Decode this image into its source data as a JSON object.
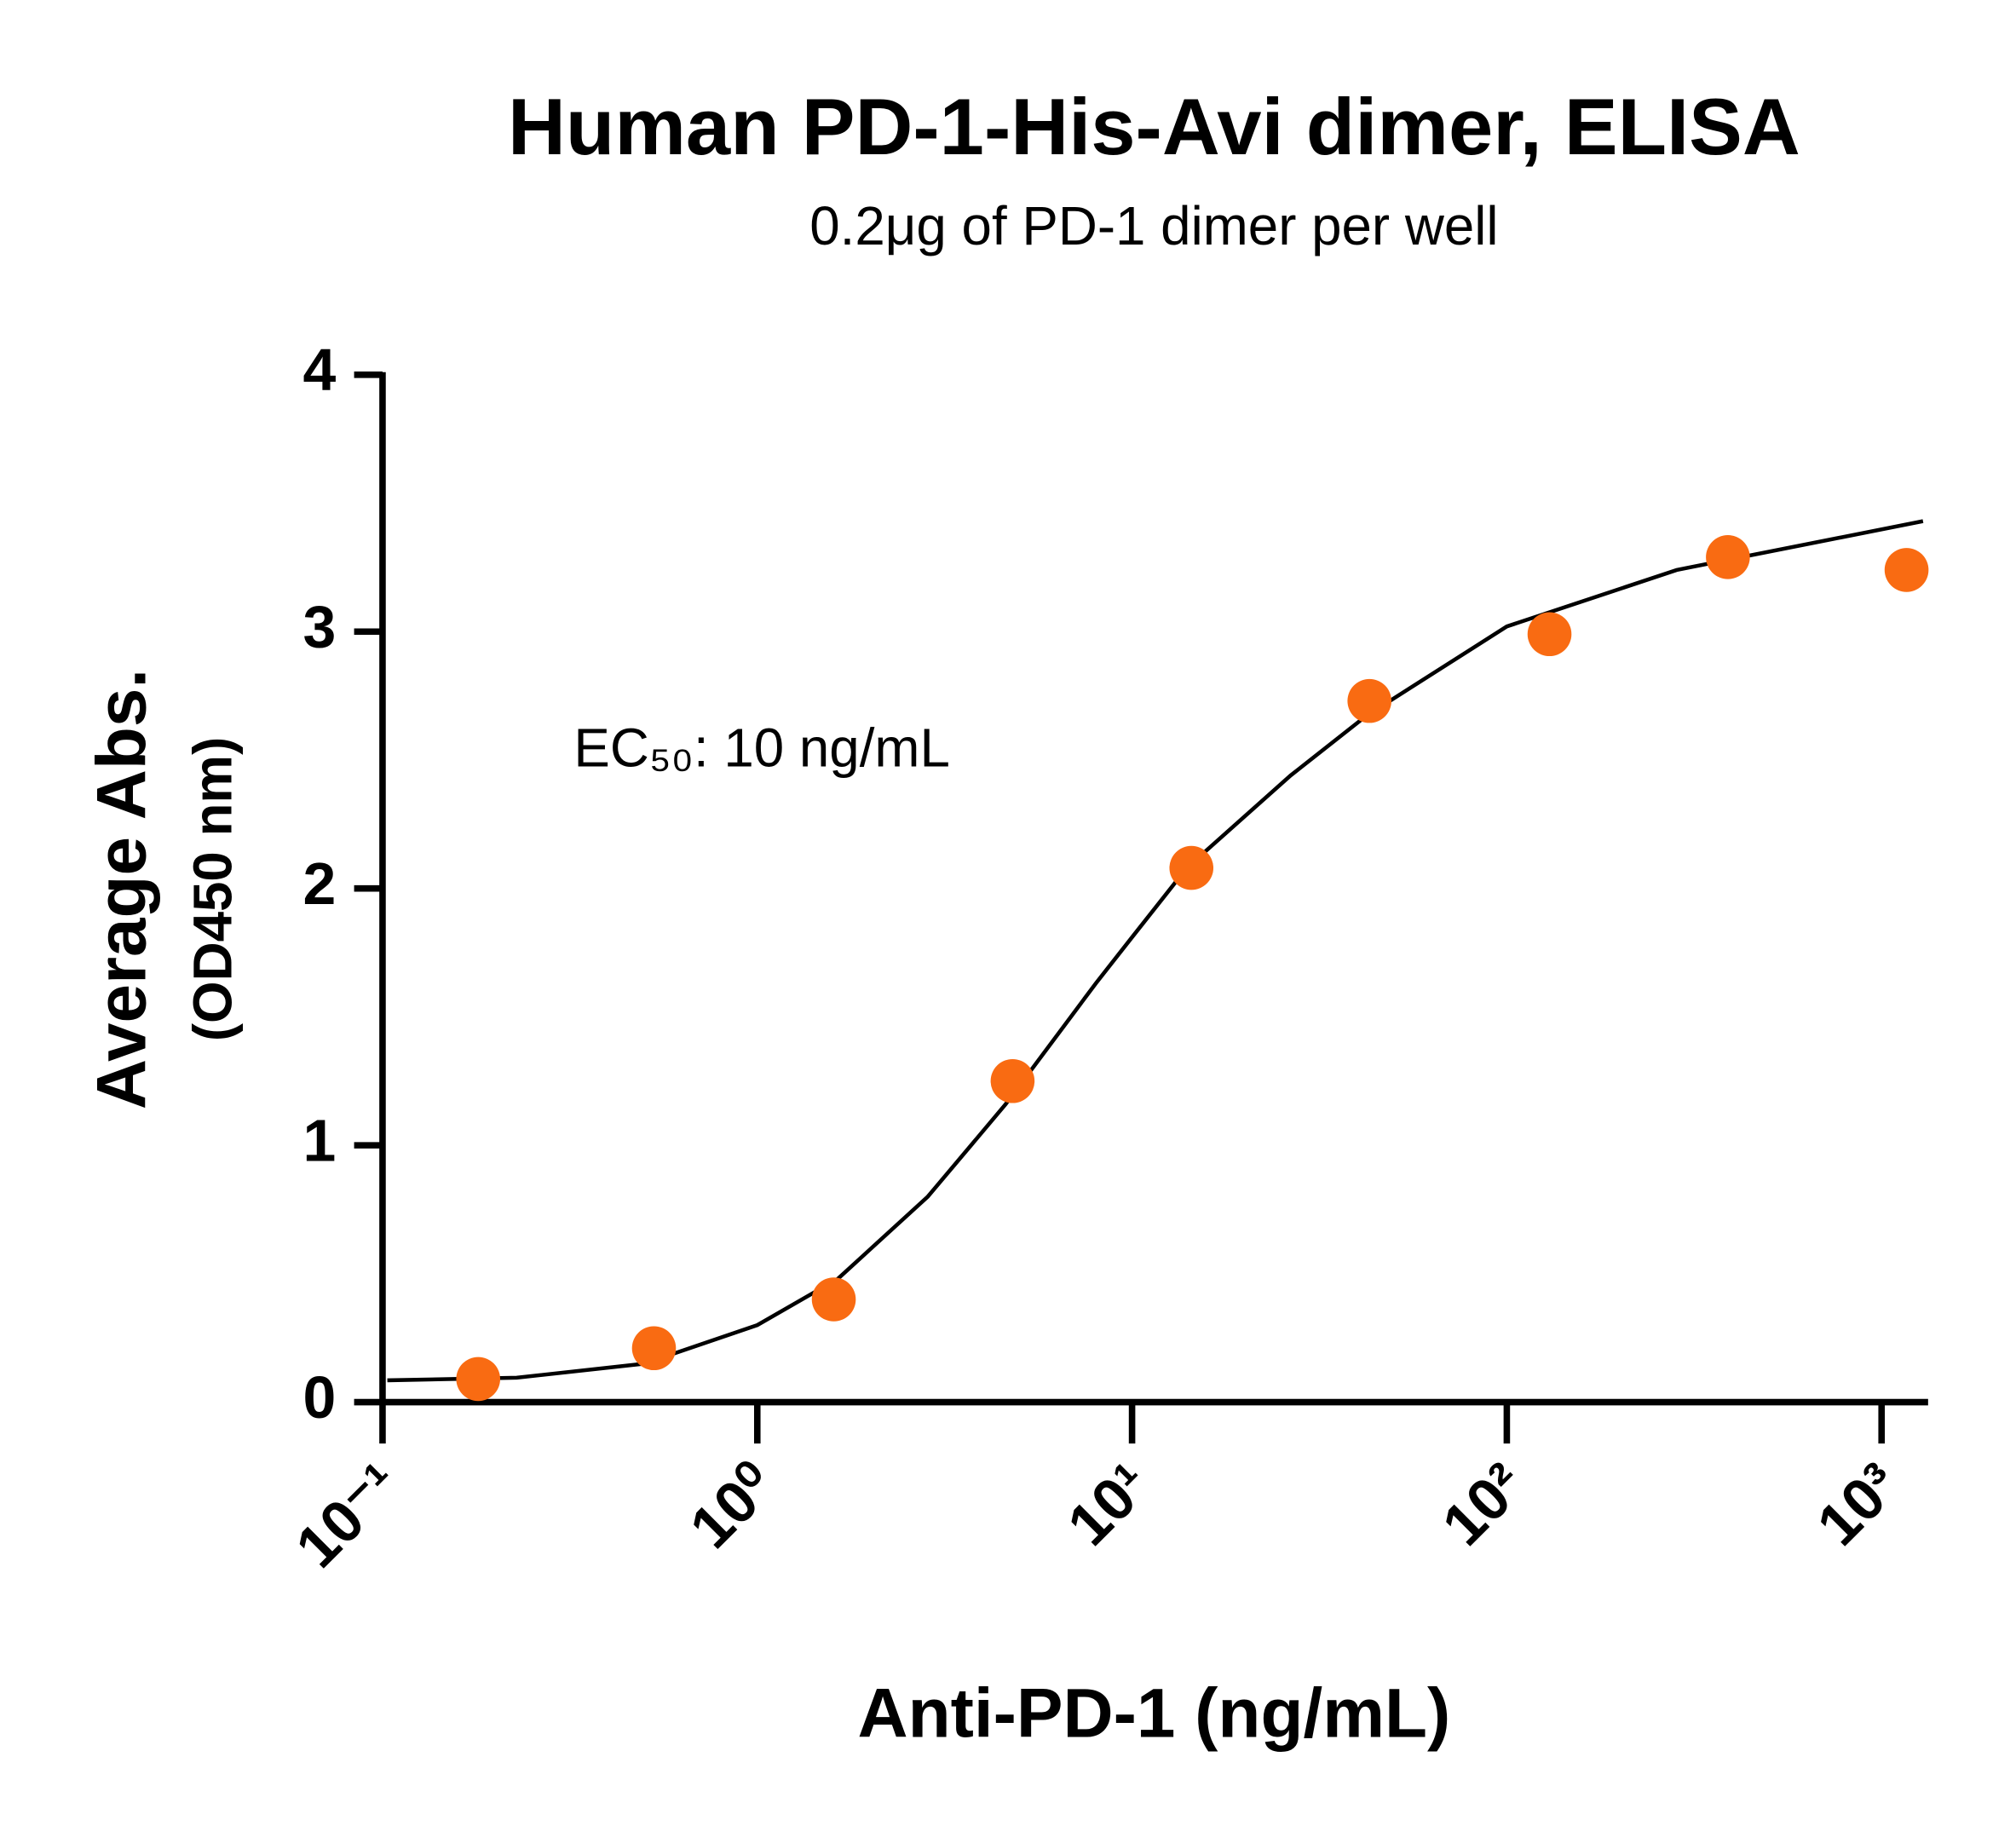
{
  "chart_data": {
    "type": "scatter",
    "title": "Human PD-1-His-Avi dimer, ELISA",
    "subtitle": "0.2μg of PD-1 dimer per well",
    "xlabel": "Anti-PD-1 (ng/mL)",
    "ylabel": [
      "Average Abs.",
      "(OD450 nm)"
    ],
    "annotation": "EC₅₀: 10 ng/mL",
    "xscale": "log",
    "xlim": [
      0.1,
      1310
    ],
    "xticks": [
      {
        "value": 0.1,
        "label": "10⁻¹"
      },
      {
        "value": 1,
        "label": "10⁰"
      },
      {
        "value": 10,
        "label": "10¹"
      },
      {
        "value": 100,
        "label": "10²"
      },
      {
        "value": 1000,
        "label": "10³"
      }
    ],
    "ylim": [
      0,
      4
    ],
    "yticks": [
      0,
      1,
      2,
      3,
      4
    ],
    "series": [
      {
        "color": "#f96b12",
        "x": [
          0.18,
          0.53,
          1.6,
          4.8,
          14.4,
          43,
          130,
          389,
          1166
        ],
        "values": [
          0.09,
          0.21,
          0.4,
          1.25,
          2.08,
          2.73,
          2.99,
          3.29,
          3.24
        ]
      }
    ],
    "fit": {
      "color": "#000000",
      "x": [
        0.103,
        0.228,
        0.5,
        1.0,
        1.64,
        2.85,
        4.6,
        8.0,
        10,
        14,
        26.5,
        42,
        100,
        284,
        1290
      ],
      "values": [
        0.085,
        0.095,
        0.15,
        0.3,
        0.48,
        0.8,
        1.16,
        1.63,
        1.81,
        2.08,
        2.44,
        2.67,
        3.02,
        3.24,
        3.43
      ]
    }
  }
}
